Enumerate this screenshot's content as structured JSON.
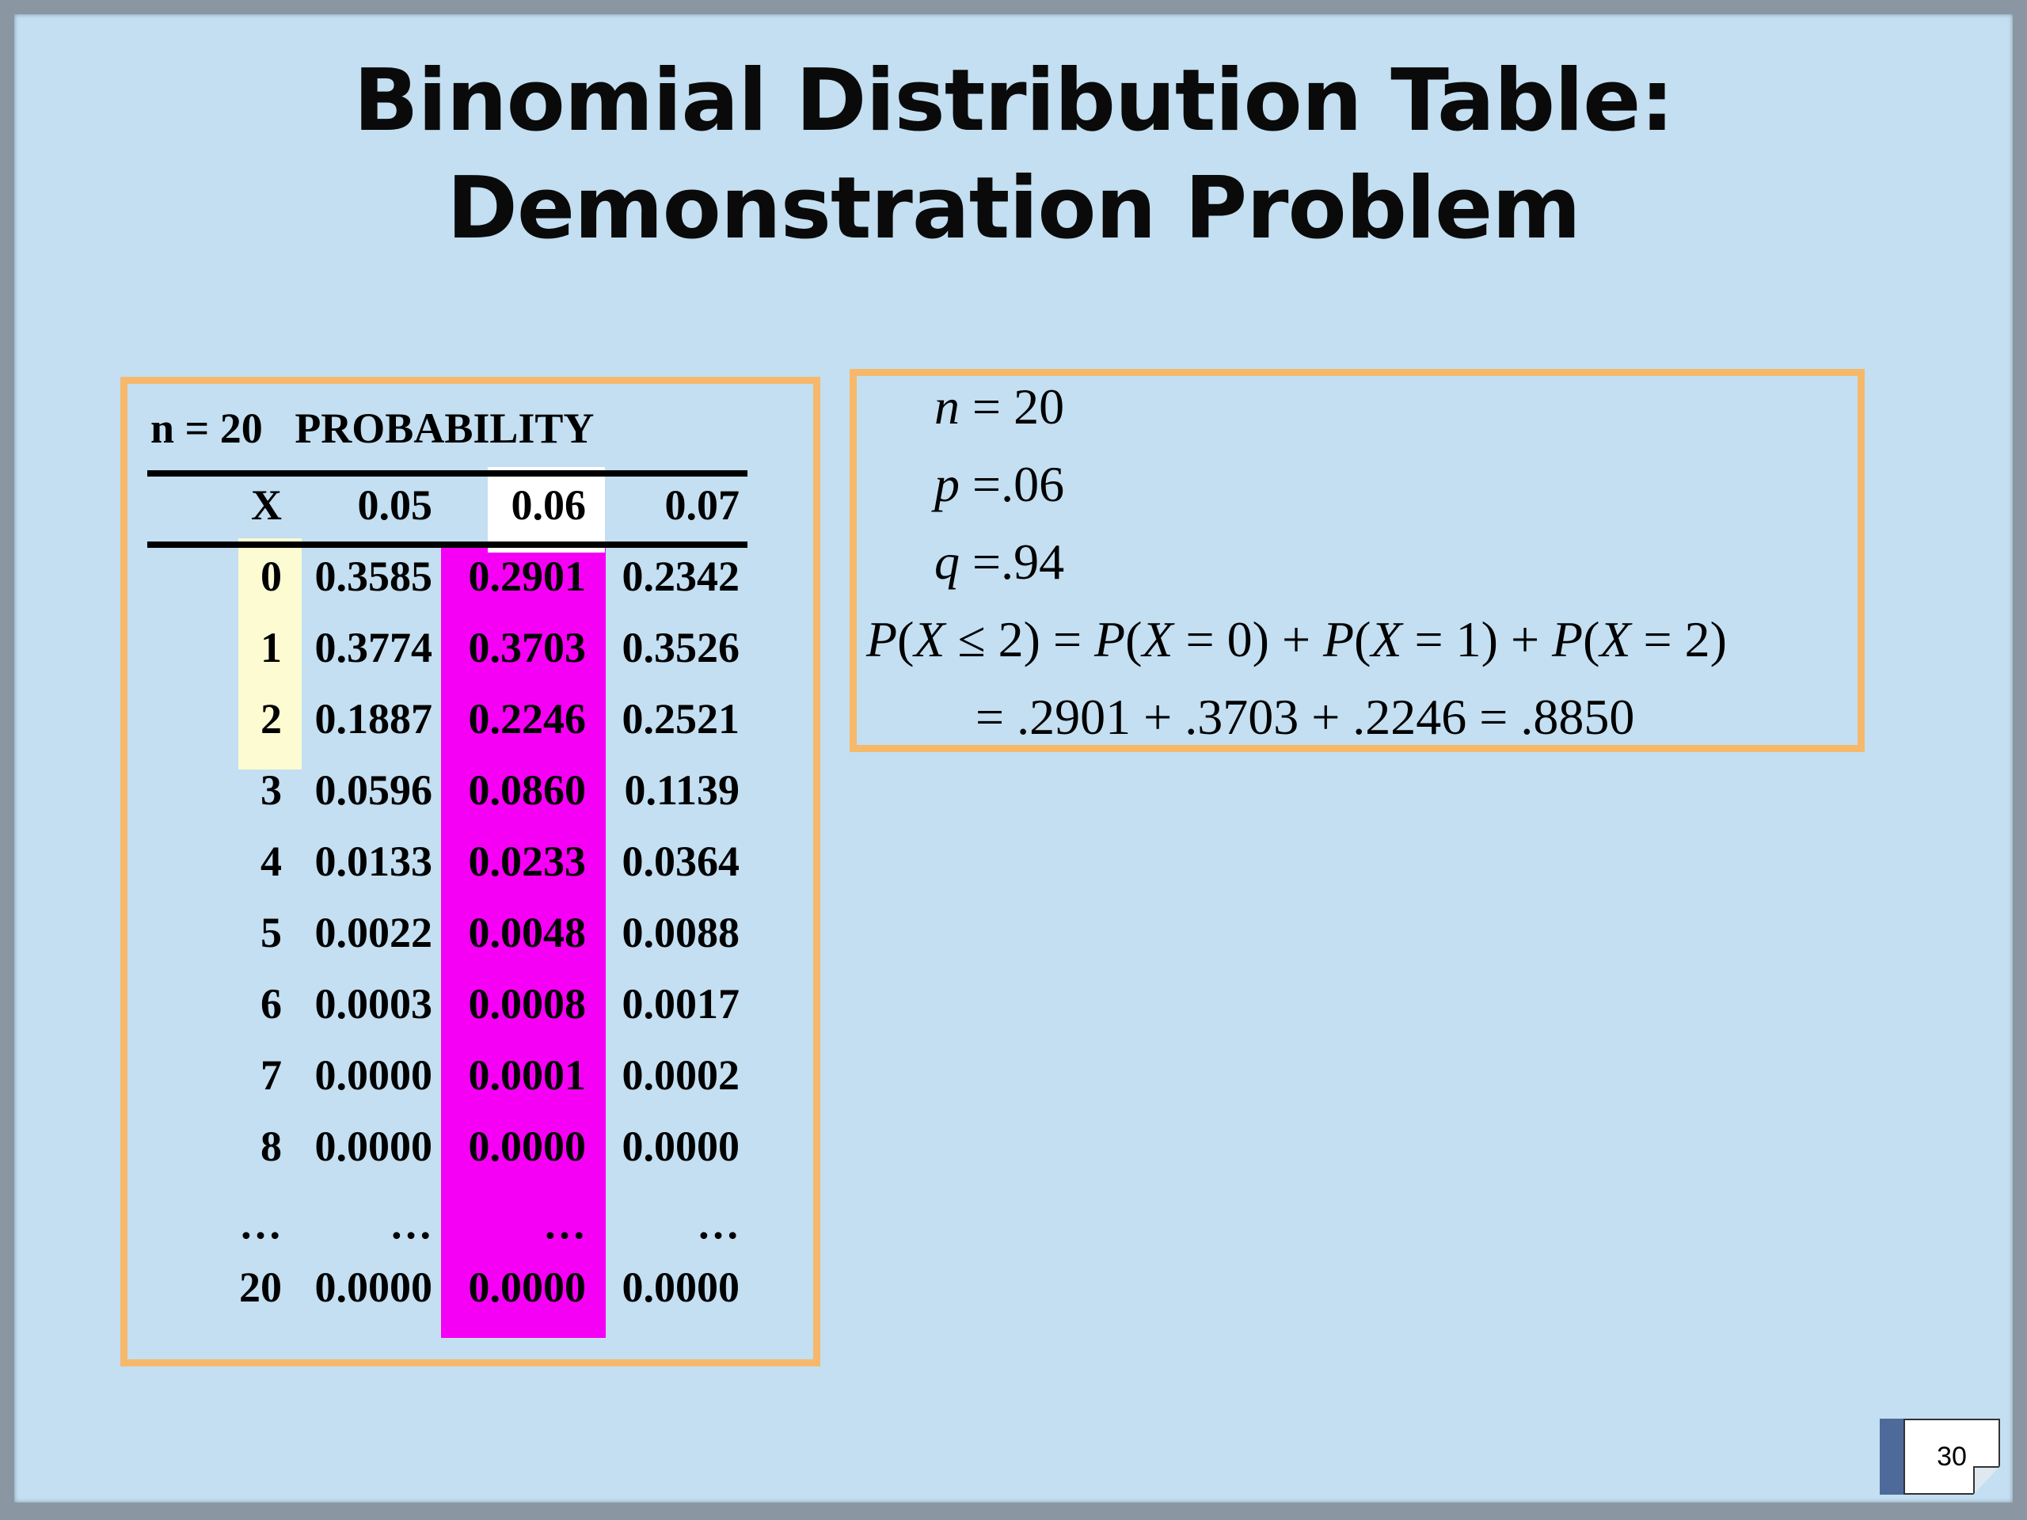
{
  "title_line1": "Binomial Distribution Table:",
  "title_line2": "Demonstration Problem",
  "table": {
    "n_label": "n = 20",
    "prob_label": "PROBABILITY",
    "headers": [
      "X",
      "0.05",
      "0.06",
      "0.07"
    ],
    "rows": [
      [
        "0",
        "0.3585",
        "0.2901",
        "0.2342"
      ],
      [
        "1",
        "0.3774",
        "0.3703",
        "0.3526"
      ],
      [
        "2",
        "0.1887",
        "0.2246",
        "0.2521"
      ],
      [
        "3",
        "0.0596",
        "0.0860",
        "0.1139"
      ],
      [
        "4",
        "0.0133",
        "0.0233",
        "0.0364"
      ],
      [
        "5",
        "0.0022",
        "0.0048",
        "0.0088"
      ],
      [
        "6",
        "0.0003",
        "0.0008",
        "0.0017"
      ],
      [
        "7",
        "0.0000",
        "0.0001",
        "0.0002"
      ],
      [
        "8",
        "0.0000",
        "0.0000",
        "0.0000"
      ],
      [
        "…",
        "…",
        "…",
        "…"
      ],
      [
        "20",
        "0.0000",
        "0.0000",
        "0.0000"
      ]
    ],
    "highlight_x_color": "#fdfbd1",
    "highlight_col_color": "#f500f5"
  },
  "calc": {
    "n_line": "n = 20",
    "p_line": "p = .06",
    "q_line": "q = .94",
    "prob_line": "P(X ≤ 2) = P(X = 0) + P(X = 1) + P(X = 2)",
    "sum_line": "= .2901 + .3703 + .2246 = .8850"
  },
  "page_number": "30",
  "colors": {
    "background": "#c3dff1",
    "box_border": "#f6b96b"
  }
}
